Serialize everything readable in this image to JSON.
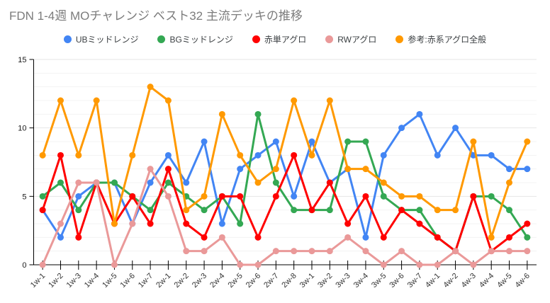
{
  "header": {
    "title": "FDN 1-4週 MOチャレンジ ベスト32 主流デッキの推移"
  },
  "chart_data": {
    "type": "line",
    "title": "FDN 1-4週 MOチャレンジ ベスト32 主流デッキの推移",
    "legend_position": "top",
    "grid": true,
    "xlabel": "",
    "ylabel": "",
    "ylim": [
      0,
      15
    ],
    "yticks": [
      0,
      5,
      10,
      15
    ],
    "categories": [
      "1w-1",
      "1w-2",
      "1w-3",
      "1w-4",
      "1w-5",
      "1w-6",
      "1w-7",
      "2w-1",
      "2w-2",
      "2w-3",
      "2w-4",
      "2w-5",
      "2w-6",
      "2w-7",
      "2w-8",
      "3w-1",
      "3w-2",
      "3w-3",
      "3w-4",
      "3w-5",
      "3w-6",
      "3w-7",
      "4w-1",
      "4w-2",
      "4w-3",
      "4w-4",
      "4w-5",
      "4w-6"
    ],
    "series": [
      {
        "name": "UBミッドレンジ",
        "key": "ub-midrange",
        "color": "#4285f4",
        "values": [
          4,
          2,
          5,
          6,
          6,
          3,
          6,
          8,
          6,
          9,
          3,
          7,
          8,
          9,
          5,
          9,
          6,
          7,
          2,
          8,
          10,
          11,
          8,
          10,
          8,
          8,
          7,
          7
        ]
      },
      {
        "name": "BGミッドレンジ",
        "key": "bg-midrange",
        "color": "#34a853",
        "values": [
          5,
          6,
          4,
          6,
          6,
          5,
          4,
          6,
          5,
          4,
          5,
          3,
          11,
          6,
          4,
          4,
          4,
          9,
          9,
          5,
          4,
          4,
          2,
          1,
          5,
          5,
          4,
          2
        ]
      },
      {
        "name": "赤単アグロ",
        "key": "mono-red-aggro",
        "color": "#ff0000",
        "values": [
          4,
          8,
          2,
          6,
          3,
          5,
          3,
          7,
          3,
          2,
          5,
          5,
          2,
          5,
          8,
          4,
          6,
          3,
          5,
          2,
          4,
          3,
          2,
          1,
          5,
          1,
          2,
          3
        ]
      },
      {
        "name": "RWアグロ",
        "key": "rw-aggro",
        "color": "#ea9999",
        "values": [
          0,
          3,
          6,
          6,
          0,
          3,
          7,
          5,
          1,
          1,
          2,
          0,
          0,
          1,
          1,
          1,
          1,
          2,
          1,
          0,
          1,
          0,
          0,
          1,
          0,
          1,
          1,
          1
        ]
      },
      {
        "name": "参考:赤系アグロ全般",
        "key": "red-aggro-overall",
        "color": "#ff9900",
        "values": [
          8,
          12,
          8,
          12,
          3,
          8,
          13,
          12,
          4,
          5,
          11,
          8,
          6,
          7,
          12,
          8,
          12,
          7,
          7,
          6,
          5,
          5,
          4,
          4,
          9,
          2,
          6,
          9
        ]
      }
    ]
  },
  "colors": {
    "title_text": "#7c7c7c",
    "legend_text": "#3c4043",
    "axis_text": "#1a1a1a",
    "x_label_text": "#333333",
    "axis_line": "#000000",
    "grid_minor": "#f3f3f3",
    "grid_major": "#e6e6e6",
    "background": "#ffffff"
  }
}
